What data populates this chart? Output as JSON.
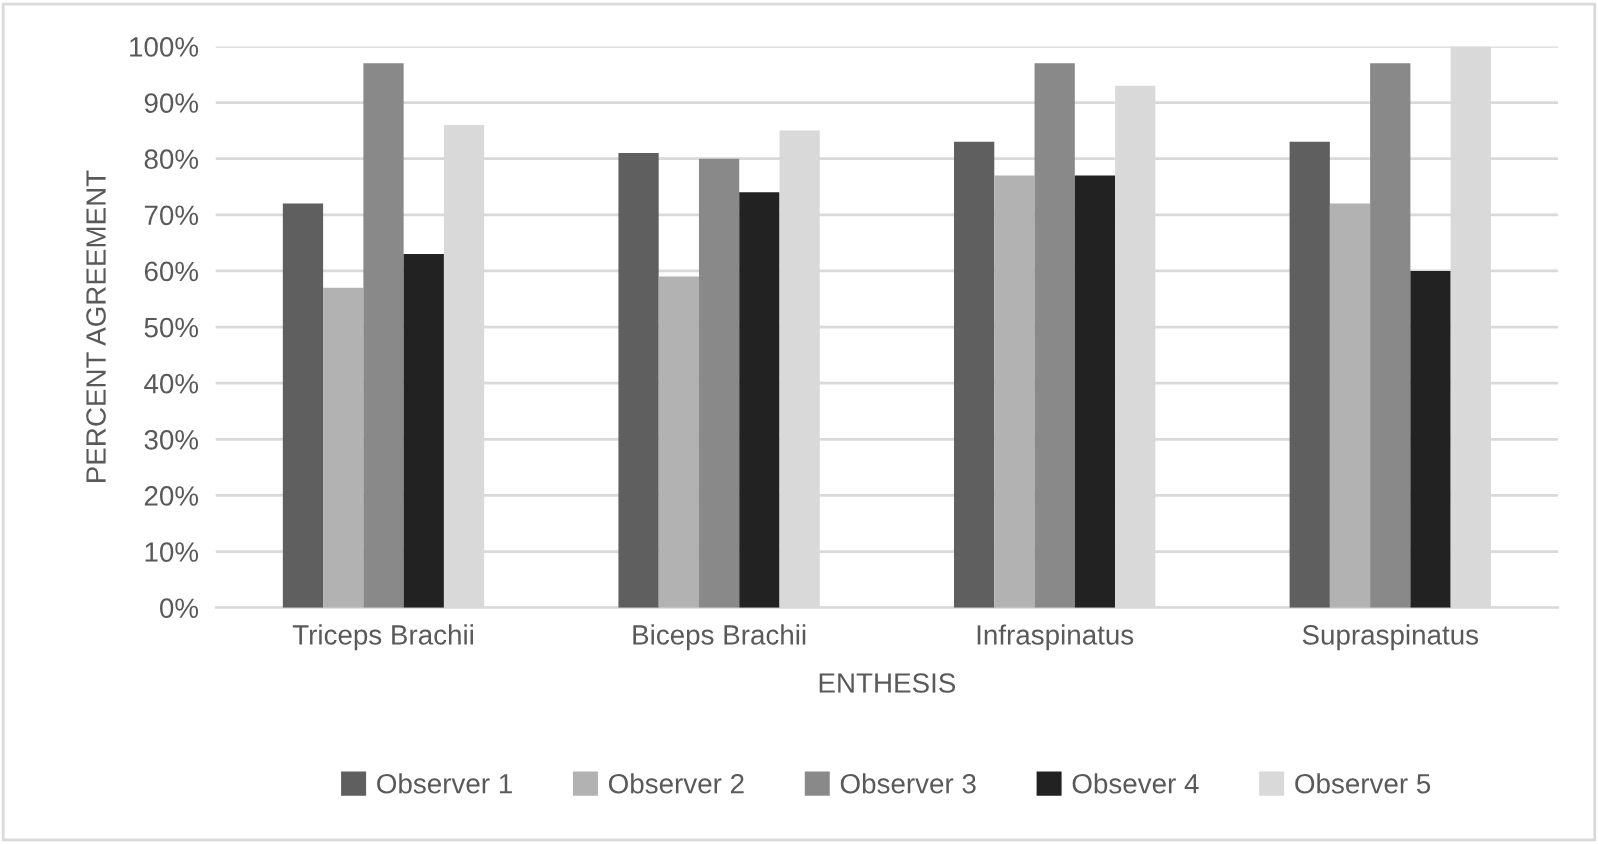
{
  "chart_data": {
    "type": "bar",
    "xlabel": "ENTHESIS",
    "ylabel": "PERCENT AGREEMENT",
    "categories": [
      "Triceps Brachii",
      "Biceps Brachii",
      "Infraspinatus",
      "Supraspinatus"
    ],
    "series": [
      {
        "name": "Observer 1",
        "color": "#5f5f5f",
        "values": [
          72,
          81,
          83,
          83
        ]
      },
      {
        "name": "Observer 2",
        "color": "#b2b2b2",
        "values": [
          57,
          59,
          77,
          72
        ]
      },
      {
        "name": "Observer 3",
        "color": "#898989",
        "values": [
          97,
          80,
          97,
          97
        ]
      },
      {
        "name": "Obsever 4",
        "color": "#222222",
        "values": [
          63,
          74,
          77,
          60
        ]
      },
      {
        "name": "Observer 5",
        "color": "#d9d9d9",
        "values": [
          86,
          85,
          93,
          100
        ]
      }
    ],
    "ylim": [
      0,
      100
    ],
    "yticks": [
      {
        "value": 0,
        "label": "0%"
      },
      {
        "value": 10,
        "label": "10%"
      },
      {
        "value": 20,
        "label": "20%"
      },
      {
        "value": 30,
        "label": "30%"
      },
      {
        "value": 40,
        "label": "40%"
      },
      {
        "value": 50,
        "label": "50%"
      },
      {
        "value": 60,
        "label": "60%"
      },
      {
        "value": 70,
        "label": "70%"
      },
      {
        "value": 80,
        "label": "80%"
      },
      {
        "value": 90,
        "label": "90%"
      },
      {
        "value": 100,
        "label": "100%"
      }
    ],
    "grid": "y",
    "legend": "bottom"
  }
}
